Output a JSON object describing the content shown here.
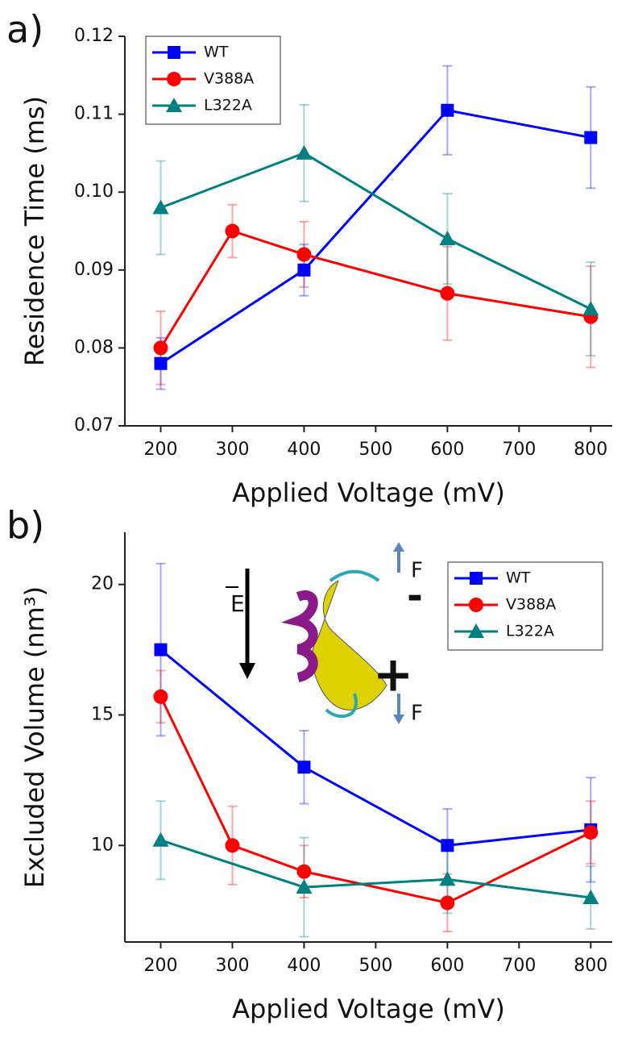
{
  "chart_data": [
    {
      "type": "line",
      "label": "a)",
      "x_label": "Applied Voltage (mV)",
      "y_label": "Residence Time (ms)",
      "xlim": [
        150,
        830
      ],
      "xticks": [
        200,
        300,
        400,
        500,
        600,
        700,
        800
      ],
      "ylim": [
        0.07,
        0.12
      ],
      "yticks": [
        0.07,
        0.08,
        0.09,
        {
          "value": 0.1,
          "label": "0.10"
        },
        0.11,
        0.12
      ],
      "legend": "upper left",
      "series": [
        {
          "name": "WT",
          "color": "#0000ff",
          "marker": "square",
          "x": [
            200,
            400,
            600,
            800
          ],
          "values": [
            0.078,
            0.09,
            0.1105,
            0.107
          ],
          "errors": [
            0.0033,
            0.0033,
            0.0057,
            0.0065
          ]
        },
        {
          "name": "V388A",
          "color": "#ff0000",
          "marker": "circle",
          "x": [
            200,
            300,
            400,
            600,
            800
          ],
          "values": [
            0.08,
            0.095,
            0.092,
            0.087,
            0.084
          ],
          "errors": [
            0.0047,
            0.0034,
            0.0042,
            0.006,
            0.0065
          ]
        },
        {
          "name": "L322A",
          "color": "#008080",
          "marker": "triangle",
          "x": [
            200,
            400,
            600,
            800
          ],
          "values": [
            0.098,
            0.105,
            0.094,
            0.085
          ],
          "errors": [
            0.006,
            0.0062,
            0.0058,
            0.006
          ]
        }
      ]
    },
    {
      "type": "line",
      "label": "b)",
      "x_label": "Applied Voltage (mV)",
      "y_label": "Excluded Volume (nm³)",
      "xlim": [
        150,
        830
      ],
      "xticks": [
        200,
        300,
        400,
        500,
        600,
        700,
        800
      ],
      "ylim": [
        6.3,
        22
      ],
      "yticks": [
        10,
        15,
        20
      ],
      "legend": "upper right",
      "annotations": [
        "E",
        "F",
        "F",
        "-",
        "+"
      ],
      "series": [
        {
          "name": "WT",
          "color": "#0000ff",
          "marker": "square",
          "x": [
            200,
            400,
            600,
            800
          ],
          "values": [
            17.5,
            13.0,
            10.0,
            10.6
          ],
          "errors": [
            3.3,
            1.4,
            1.4,
            2.0
          ]
        },
        {
          "name": "V388A",
          "color": "#ff0000",
          "marker": "circle",
          "x": [
            200,
            300,
            400,
            600,
            800
          ],
          "values": [
            15.7,
            10.0,
            9.0,
            7.8,
            10.5
          ],
          "errors": [
            1.0,
            1.5,
            1.0,
            1.1,
            1.2
          ]
        },
        {
          "name": "L322A",
          "color": "#008080",
          "marker": "triangle",
          "x": [
            200,
            400,
            600,
            800
          ],
          "values": [
            10.2,
            8.4,
            8.7,
            8.0
          ],
          "errors": [
            1.5,
            1.9,
            1.3,
            1.2
          ]
        }
      ]
    }
  ]
}
